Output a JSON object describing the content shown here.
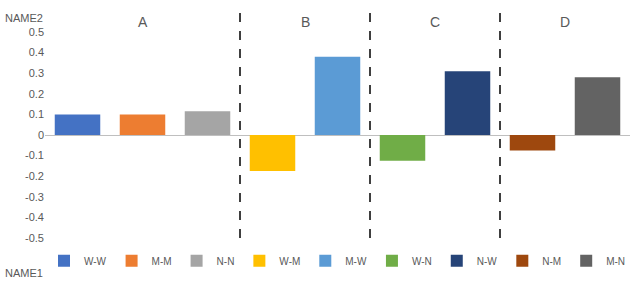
{
  "chart_data": {
    "type": "bar",
    "y_label": "NAME2",
    "x_label": "NAME1",
    "categories": [
      "W-W",
      "M-M",
      "N-N",
      "W-M",
      "M-W",
      "W-N",
      "N-W",
      "N-M",
      "M-N"
    ],
    "values": [
      0.1,
      0.1,
      0.115,
      -0.175,
      0.38,
      -0.125,
      0.31,
      -0.075,
      0.28
    ],
    "colors": [
      "#4472c4",
      "#ed7d31",
      "#a5a5a5",
      "#ffc000",
      "#5b9bd5",
      "#70ad47",
      "#264478",
      "#9e480e",
      "#636363"
    ],
    "groups": [
      {
        "label": "A",
        "categories": [
          "W-W",
          "M-M",
          "N-N"
        ]
      },
      {
        "label": "B",
        "categories": [
          "W-M",
          "M-W"
        ]
      },
      {
        "label": "C",
        "categories": [
          "W-N",
          "N-W"
        ]
      },
      {
        "label": "D",
        "categories": [
          "N-M",
          "M-N"
        ]
      }
    ],
    "ylim": [
      -0.5,
      0.5
    ],
    "yticks": [
      -0.5,
      -0.4,
      -0.3,
      -0.2,
      -0.1,
      0,
      0.1,
      0.2,
      0.3,
      0.4,
      0.5
    ],
    "grid": false,
    "tick_labels": "y",
    "legend": "bottom"
  }
}
